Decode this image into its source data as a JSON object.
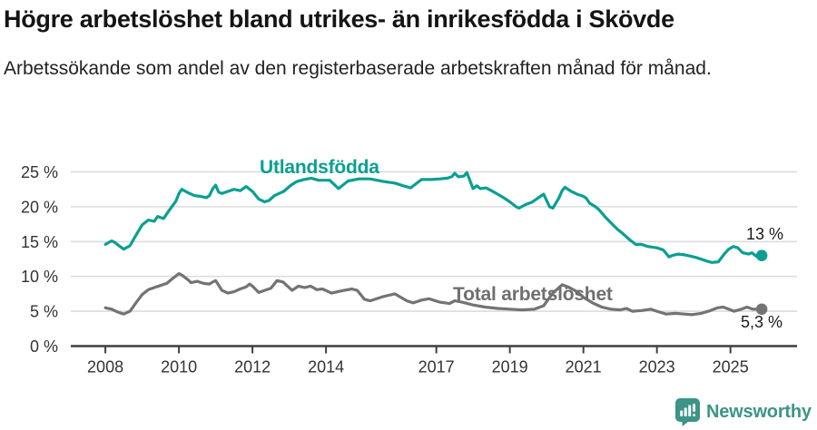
{
  "header": {
    "title": "Högre arbetslöshet bland utrikes- än inrikesfödda i Skövde",
    "subtitle": "Arbetssökande som andel av den registerbaserade arbetskraften månad för månad."
  },
  "footer": {
    "brand": "Newsworthy",
    "brand_icon": "bar-chart-speech-bubble-icon",
    "brand_color": "#3d9488"
  },
  "chart_data": {
    "type": "line",
    "title": "Högre arbetslöshet bland utrikes- än inrikesfödda i Skövde",
    "subtitle": "Arbetssökande som andel av den registerbaserade arbetskraften månad för månad.",
    "xlabel": "",
    "ylabel": "",
    "grid": "horizontal",
    "legend_position": "inline-labels",
    "x_ticks": [
      2008,
      2010,
      2012,
      2014,
      2017,
      2019,
      2021,
      2023,
      2025
    ],
    "y_ticks": [
      0,
      5,
      10,
      15,
      20,
      25
    ],
    "y_tick_suffix": " %",
    "xlim": [
      2007.06,
      2026.81
    ],
    "ylim": [
      0,
      26
    ],
    "colors": {
      "axis": "#3f3f3f",
      "gridline": "#dcdcdc",
      "tick_text": "#333333"
    },
    "series": [
      {
        "name": "Utlandsfödda",
        "color": "#0b9f93",
        "end_label": "13 %",
        "end_value": 13.0,
        "points": [
          [
            2008.0,
            14.6
          ],
          [
            2008.17,
            15.1
          ],
          [
            2008.25,
            14.9
          ],
          [
            2008.42,
            14.2
          ],
          [
            2008.5,
            13.9
          ],
          [
            2008.67,
            14.4
          ],
          [
            2008.83,
            15.9
          ],
          [
            2009.0,
            17.4
          ],
          [
            2009.17,
            18.1
          ],
          [
            2009.33,
            17.9
          ],
          [
            2009.42,
            18.6
          ],
          [
            2009.58,
            18.3
          ],
          [
            2009.75,
            19.6
          ],
          [
            2009.92,
            20.8
          ],
          [
            2010.0,
            21.9
          ],
          [
            2010.08,
            22.5
          ],
          [
            2010.25,
            22.0
          ],
          [
            2010.42,
            21.6
          ],
          [
            2010.58,
            21.5
          ],
          [
            2010.75,
            21.3
          ],
          [
            2010.83,
            21.6
          ],
          [
            2010.92,
            22.6
          ],
          [
            2011.0,
            23.1
          ],
          [
            2011.08,
            22.1
          ],
          [
            2011.17,
            21.9
          ],
          [
            2011.33,
            22.2
          ],
          [
            2011.5,
            22.5
          ],
          [
            2011.67,
            22.3
          ],
          [
            2011.83,
            22.9
          ],
          [
            2012.0,
            22.2
          ],
          [
            2012.17,
            21.1
          ],
          [
            2012.33,
            20.7
          ],
          [
            2012.45,
            20.9
          ],
          [
            2012.6,
            21.6
          ],
          [
            2012.85,
            22.2
          ],
          [
            2013.05,
            23.1
          ],
          [
            2013.2,
            23.6
          ],
          [
            2013.4,
            23.9
          ],
          [
            2013.6,
            24.1
          ],
          [
            2013.8,
            23.8
          ],
          [
            2014.1,
            23.8
          ],
          [
            2014.34,
            22.6
          ],
          [
            2014.6,
            23.7
          ],
          [
            2014.9,
            24.0
          ],
          [
            2015.2,
            24.0
          ],
          [
            2015.58,
            23.6
          ],
          [
            2015.87,
            23.4
          ],
          [
            2016.1,
            23.0
          ],
          [
            2016.3,
            22.7
          ],
          [
            2016.6,
            23.9
          ],
          [
            2016.86,
            23.9
          ],
          [
            2017.1,
            24.0
          ],
          [
            2017.3,
            24.1
          ],
          [
            2017.42,
            24.3
          ],
          [
            2017.5,
            24.8
          ],
          [
            2017.6,
            24.3
          ],
          [
            2017.75,
            24.4
          ],
          [
            2017.83,
            24.9
          ],
          [
            2018.0,
            22.6
          ],
          [
            2018.1,
            23.0
          ],
          [
            2018.2,
            22.6
          ],
          [
            2018.35,
            22.7
          ],
          [
            2018.5,
            22.3
          ],
          [
            2018.67,
            21.8
          ],
          [
            2018.83,
            21.3
          ],
          [
            2019.0,
            20.7
          ],
          [
            2019.17,
            20.0
          ],
          [
            2019.25,
            19.8
          ],
          [
            2019.42,
            20.3
          ],
          [
            2019.58,
            20.6
          ],
          [
            2019.67,
            20.9
          ],
          [
            2019.83,
            21.5
          ],
          [
            2019.92,
            21.8
          ],
          [
            2020.08,
            20.0
          ],
          [
            2020.17,
            19.8
          ],
          [
            2020.33,
            21.2
          ],
          [
            2020.42,
            22.3
          ],
          [
            2020.5,
            22.8
          ],
          [
            2020.67,
            22.2
          ],
          [
            2020.83,
            21.8
          ],
          [
            2021.0,
            21.5
          ],
          [
            2021.08,
            21.2
          ],
          [
            2021.17,
            20.5
          ],
          [
            2021.33,
            20.0
          ],
          [
            2021.42,
            19.6
          ],
          [
            2021.58,
            18.6
          ],
          [
            2021.75,
            17.7
          ],
          [
            2021.92,
            16.8
          ],
          [
            2022.08,
            16.1
          ],
          [
            2022.25,
            15.3
          ],
          [
            2022.42,
            14.6
          ],
          [
            2022.58,
            14.6
          ],
          [
            2022.75,
            14.3
          ],
          [
            2023.0,
            14.1
          ],
          [
            2023.17,
            13.8
          ],
          [
            2023.33,
            12.8
          ],
          [
            2023.42,
            13.0
          ],
          [
            2023.58,
            13.2
          ],
          [
            2023.75,
            13.1
          ],
          [
            2023.92,
            12.9
          ],
          [
            2024.08,
            12.7
          ],
          [
            2024.25,
            12.4
          ],
          [
            2024.42,
            12.1
          ],
          [
            2024.5,
            12.0
          ],
          [
            2024.67,
            12.1
          ],
          [
            2024.83,
            13.2
          ],
          [
            2024.95,
            13.9
          ],
          [
            2025.08,
            14.3
          ],
          [
            2025.2,
            14.1
          ],
          [
            2025.33,
            13.4
          ],
          [
            2025.5,
            13.2
          ],
          [
            2025.58,
            13.4
          ],
          [
            2025.7,
            12.9
          ],
          [
            2025.85,
            13.0
          ]
        ]
      },
      {
        "name": "Total arbetslöshet",
        "color": "#737373",
        "end_label": "5,3 %",
        "end_value": 5.3,
        "points": [
          [
            2008.0,
            5.5
          ],
          [
            2008.17,
            5.3
          ],
          [
            2008.33,
            4.9
          ],
          [
            2008.5,
            4.6
          ],
          [
            2008.67,
            5.0
          ],
          [
            2008.83,
            6.2
          ],
          [
            2009.0,
            7.4
          ],
          [
            2009.17,
            8.1
          ],
          [
            2009.33,
            8.4
          ],
          [
            2009.5,
            8.7
          ],
          [
            2009.67,
            9.0
          ],
          [
            2009.83,
            9.7
          ],
          [
            2010.0,
            10.4
          ],
          [
            2010.08,
            10.2
          ],
          [
            2010.25,
            9.5
          ],
          [
            2010.33,
            9.1
          ],
          [
            2010.5,
            9.3
          ],
          [
            2010.67,
            9.0
          ],
          [
            2010.83,
            8.9
          ],
          [
            2010.92,
            9.2
          ],
          [
            2011.0,
            9.4
          ],
          [
            2011.17,
            8.0
          ],
          [
            2011.33,
            7.6
          ],
          [
            2011.5,
            7.8
          ],
          [
            2011.67,
            8.2
          ],
          [
            2011.83,
            8.5
          ],
          [
            2011.92,
            8.9
          ],
          [
            2012.0,
            8.6
          ],
          [
            2012.17,
            7.7
          ],
          [
            2012.33,
            8.0
          ],
          [
            2012.5,
            8.3
          ],
          [
            2012.67,
            9.4
          ],
          [
            2012.83,
            9.2
          ],
          [
            2013.08,
            8.0
          ],
          [
            2013.25,
            8.6
          ],
          [
            2013.42,
            8.4
          ],
          [
            2013.58,
            8.6
          ],
          [
            2013.75,
            8.1
          ],
          [
            2013.9,
            8.2
          ],
          [
            2014.15,
            7.6
          ],
          [
            2014.4,
            7.9
          ],
          [
            2014.7,
            8.2
          ],
          [
            2014.85,
            8.0
          ],
          [
            2015.05,
            6.7
          ],
          [
            2015.2,
            6.5
          ],
          [
            2015.55,
            7.1
          ],
          [
            2015.87,
            7.5
          ],
          [
            2016.2,
            6.5
          ],
          [
            2016.37,
            6.2
          ],
          [
            2016.6,
            6.6
          ],
          [
            2016.8,
            6.8
          ],
          [
            2017.1,
            6.3
          ],
          [
            2017.36,
            6.1
          ],
          [
            2017.5,
            6.5
          ],
          [
            2017.7,
            6.3
          ],
          [
            2018.0,
            5.9
          ],
          [
            2018.33,
            5.6
          ],
          [
            2018.67,
            5.4
          ],
          [
            2019.0,
            5.3
          ],
          [
            2019.33,
            5.2
          ],
          [
            2019.67,
            5.3
          ],
          [
            2019.92,
            5.8
          ],
          [
            2020.17,
            7.6
          ],
          [
            2020.42,
            8.8
          ],
          [
            2020.58,
            8.5
          ],
          [
            2020.83,
            7.8
          ],
          [
            2021.0,
            7.0
          ],
          [
            2021.25,
            6.2
          ],
          [
            2021.5,
            5.6
          ],
          [
            2021.75,
            5.3
          ],
          [
            2022.0,
            5.2
          ],
          [
            2022.17,
            5.4
          ],
          [
            2022.33,
            5.0
          ],
          [
            2022.58,
            5.1
          ],
          [
            2022.83,
            5.3
          ],
          [
            2023.0,
            5.0
          ],
          [
            2023.25,
            4.6
          ],
          [
            2023.5,
            4.7
          ],
          [
            2023.75,
            4.6
          ],
          [
            2023.95,
            4.5
          ],
          [
            2024.2,
            4.7
          ],
          [
            2024.4,
            5.0
          ],
          [
            2024.65,
            5.5
          ],
          [
            2024.8,
            5.6
          ],
          [
            2024.95,
            5.3
          ],
          [
            2025.1,
            5.0
          ],
          [
            2025.3,
            5.3
          ],
          [
            2025.45,
            5.6
          ],
          [
            2025.6,
            5.3
          ],
          [
            2025.85,
            5.3
          ]
        ]
      }
    ]
  }
}
